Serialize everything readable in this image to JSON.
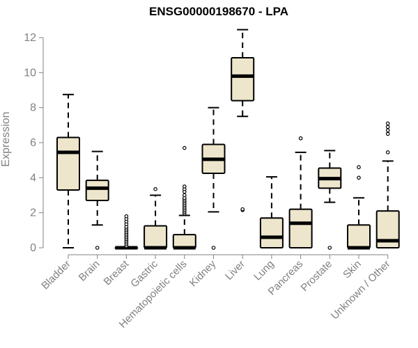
{
  "chart_data": {
    "type": "boxplot",
    "title": "ENSG00000198670 - LPA",
    "xlabel": "",
    "ylabel": "Expression",
    "ylim": [
      0,
      12.4
    ],
    "yticks": [
      0,
      2,
      4,
      6,
      8,
      10,
      12
    ],
    "grid": false,
    "box_fill": "#ede6cc",
    "categories": [
      "Bladder",
      "Brain",
      "Breast",
      "Gastric",
      "Hematopoietic cells",
      "Kidney",
      "Liver",
      "Lung",
      "Pancreas",
      "Prostate",
      "Skin",
      "Unknown / Other"
    ],
    "boxes": [
      {
        "category": "Bladder",
        "whisker_low": 0.0,
        "q1": 3.3,
        "median": 5.45,
        "q3": 6.3,
        "whisker_high": 8.75,
        "outliers": []
      },
      {
        "category": "Brain",
        "whisker_low": 1.3,
        "q1": 2.7,
        "median": 3.4,
        "q3": 3.85,
        "whisker_high": 5.5,
        "outliers": [
          0.0
        ]
      },
      {
        "category": "Breast",
        "whisker_low": 0.0,
        "q1": 0.0,
        "median": 0.0,
        "q3": 0.0,
        "whisker_high": 0.0,
        "outliers": [
          0.1,
          0.2,
          0.3,
          0.4,
          0.5,
          0.6,
          0.7,
          0.8,
          0.9,
          1.0,
          1.1,
          1.2,
          1.35,
          1.5,
          1.65,
          1.8
        ]
      },
      {
        "category": "Gastric",
        "whisker_low": 0.0,
        "q1": 0.0,
        "median": 0.0,
        "q3": 1.25,
        "whisker_high": 3.0,
        "outliers": [
          3.35
        ]
      },
      {
        "category": "Hematopoietic cells",
        "whisker_low": 0.0,
        "q1": 0.0,
        "median": 0.0,
        "q3": 0.75,
        "whisker_high": 1.85,
        "outliers": [
          1.95,
          2.05,
          2.15,
          2.25,
          2.35,
          2.45,
          2.55,
          2.65,
          2.75,
          2.85,
          3.0,
          3.2,
          3.35,
          3.5,
          5.7
        ]
      },
      {
        "category": "Kidney",
        "whisker_low": 2.05,
        "q1": 4.25,
        "median": 5.05,
        "q3": 5.9,
        "whisker_high": 8.0,
        "outliers": [
          0.0
        ]
      },
      {
        "category": "Liver",
        "whisker_low": 7.5,
        "q1": 8.4,
        "median": 9.8,
        "q3": 10.85,
        "whisker_high": 12.45,
        "outliers": [
          2.15,
          2.2
        ]
      },
      {
        "category": "Lung",
        "whisker_low": 0.0,
        "q1": 0.0,
        "median": 0.6,
        "q3": 1.7,
        "whisker_high": 4.05,
        "outliers": []
      },
      {
        "category": "Pancreas",
        "whisker_low": 0.0,
        "q1": 0.0,
        "median": 1.4,
        "q3": 2.2,
        "whisker_high": 5.45,
        "outliers": [
          6.25
        ]
      },
      {
        "category": "Prostate",
        "whisker_low": 2.6,
        "q1": 3.4,
        "median": 3.95,
        "q3": 4.55,
        "whisker_high": 5.55,
        "outliers": [
          0.0
        ]
      },
      {
        "category": "Skin",
        "whisker_low": 0.0,
        "q1": 0.0,
        "median": 0.0,
        "q3": 1.3,
        "whisker_high": 2.85,
        "outliers": [
          4.0,
          4.6
        ]
      },
      {
        "category": "Unknown / Other",
        "whisker_low": 0.0,
        "q1": 0.0,
        "median": 0.4,
        "q3": 2.1,
        "whisker_high": 4.95,
        "outliers": [
          5.45,
          6.5,
          6.7,
          6.9,
          7.1
        ]
      }
    ]
  }
}
